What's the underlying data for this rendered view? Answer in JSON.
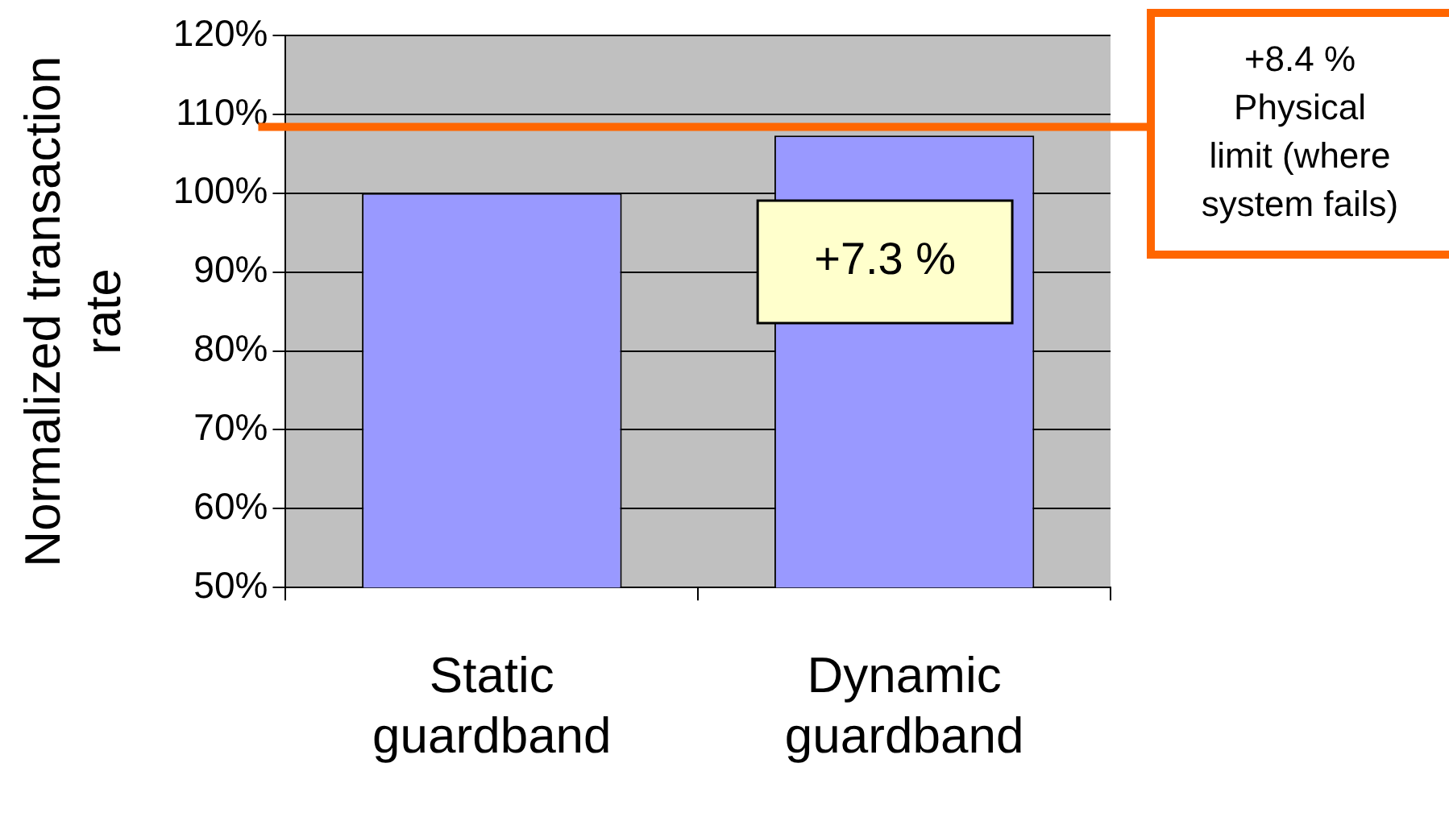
{
  "chart_data": {
    "type": "bar",
    "ylabel": "Normalized transaction rate",
    "categories": [
      "Static guardband",
      "Dynamic guardband"
    ],
    "values": [
      100,
      107.3
    ],
    "color": "#9999ff",
    "ylim": [
      50,
      120
    ],
    "yticks": [
      {
        "value": 50,
        "label": "50%"
      },
      {
        "value": 60,
        "label": "60%"
      },
      {
        "value": 70,
        "label": "70%"
      },
      {
        "value": 80,
        "label": "80%"
      },
      {
        "value": 90,
        "label": "90%"
      },
      {
        "value": 100,
        "label": "100%"
      },
      {
        "value": 110,
        "label": "110%"
      },
      {
        "value": 120,
        "label": "120%"
      }
    ],
    "grid": "y",
    "legend": false,
    "ref_lines": [
      {
        "axis": "y",
        "value": 108.4,
        "label": "+8.4 % Physical limit (where system fails)",
        "color": "#ff6600"
      }
    ],
    "annotations": [
      "+7.3 %"
    ]
  }
}
